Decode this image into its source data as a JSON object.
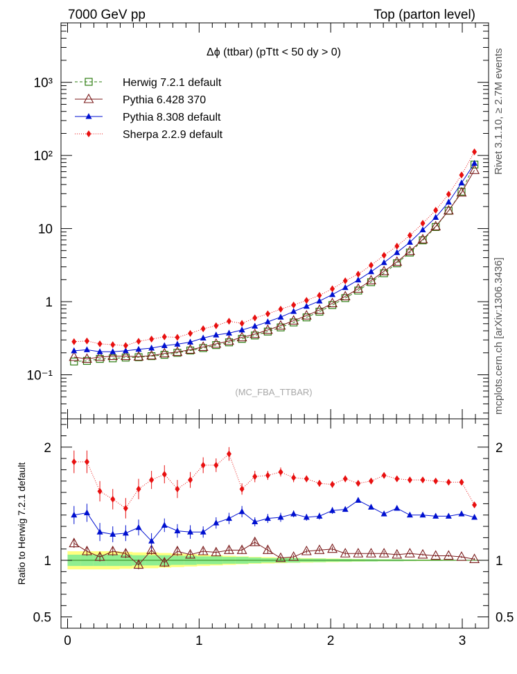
{
  "header": {
    "left": "7000 GeV pp",
    "right": "Top (parton level)"
  },
  "side_labels": {
    "rivet": "Rivet 3.1.10, ≥ 2.7M events",
    "mcplots": "mcplots.cern.ch [arXiv:1306.3436]"
  },
  "chart_data": [
    {
      "type": "line",
      "title": "Δϕ (ttbar) (pTtt < 50 dy > 0)",
      "watermark": "(MC_FBA_TTBAR)",
      "xlabel": "",
      "ylabel": "",
      "xlim": [
        -0.05,
        3.2
      ],
      "ylim": [
        0.025,
        6500
      ],
      "yscale": "log",
      "xticks": [
        "0",
        "1",
        "2",
        "3"
      ],
      "yticks": [
        "10⁻¹",
        "1",
        "10",
        "10²",
        "10³"
      ],
      "legend_position": "top-left",
      "x": [
        0.0491,
        0.1473,
        0.2454,
        0.3436,
        0.4418,
        0.54,
        0.6381,
        0.7363,
        0.8345,
        0.9327,
        1.0308,
        1.129,
        1.2272,
        1.3254,
        1.4235,
        1.5217,
        1.6199,
        1.7181,
        1.8162,
        1.9144,
        2.0126,
        2.1108,
        2.209,
        2.3071,
        2.4053,
        2.5035,
        2.6017,
        2.6998,
        2.798,
        2.8962,
        2.9944,
        3.0925
      ],
      "series": [
        {
          "name": "Herwig 7.2.1 default",
          "color": "#2e7d12",
          "marker": "open-square",
          "line": "dashed",
          "values": [
            0.152,
            0.155,
            0.165,
            0.168,
            0.172,
            0.174,
            0.18,
            0.188,
            0.2,
            0.215,
            0.232,
            0.255,
            0.278,
            0.31,
            0.345,
            0.39,
            0.445,
            0.52,
            0.61,
            0.73,
            0.9,
            1.12,
            1.42,
            1.85,
            2.45,
            3.35,
            4.7,
            6.9,
            10.5,
            17.5,
            32,
            75
          ]
        },
        {
          "name": "Pythia 6.428 370",
          "color": "#7a1a1a",
          "marker": "open-triangle",
          "line": "solid",
          "values": [
            0.175,
            0.165,
            0.175,
            0.18,
            0.18,
            0.177,
            0.183,
            0.196,
            0.205,
            0.22,
            0.24,
            0.265,
            0.29,
            0.325,
            0.36,
            0.41,
            0.47,
            0.55,
            0.645,
            0.77,
            0.95,
            1.18,
            1.5,
            1.95,
            2.6,
            3.5,
            4.9,
            7.1,
            10.7,
            17.6,
            31,
            63
          ]
        },
        {
          "name": "Pythia 8.308 default",
          "color": "#0010d0",
          "marker": "filled-triangle",
          "line": "solid",
          "values": [
            0.213,
            0.22,
            0.207,
            0.207,
            0.213,
            0.223,
            0.232,
            0.25,
            0.262,
            0.28,
            0.318,
            0.35,
            0.372,
            0.41,
            0.462,
            0.53,
            0.615,
            0.735,
            0.865,
            1.02,
            1.25,
            1.56,
            1.98,
            2.57,
            3.42,
            4.7,
            6.5,
            9.6,
            14.2,
            23,
            42,
            78
          ]
        },
        {
          "name": "Sherpa 2.2.9 default",
          "color": "#e81010",
          "marker": "filled-diamond",
          "line": "dotted",
          "values": [
            0.284,
            0.29,
            0.265,
            0.258,
            0.251,
            0.287,
            0.308,
            0.331,
            0.325,
            0.368,
            0.426,
            0.469,
            0.54,
            0.505,
            0.6,
            0.681,
            0.79,
            0.901,
            1.04,
            1.22,
            1.5,
            1.93,
            2.38,
            3.15,
            4.3,
            5.75,
            8.05,
            11.8,
            17.8,
            29.5,
            54,
            112
          ]
        }
      ]
    },
    {
      "type": "line",
      "title": "",
      "xlabel": "",
      "ylabel": "Ratio to Herwig 7.2.1 default",
      "xlim": [
        -0.05,
        3.2
      ],
      "ylim": [
        0.4,
        2.25
      ],
      "xticks": [
        "0",
        "1",
        "2",
        "3"
      ],
      "yticks": [
        "0.5",
        "1",
        "2"
      ],
      "reference_band": {
        "inner_color": "#90ee90",
        "outer_color": "#ffff80",
        "inner_halfwidth": [
          0.05,
          0.05,
          0.05,
          0.05,
          0.05,
          0.045,
          0.045,
          0.045,
          0.04,
          0.04,
          0.035,
          0.035,
          0.03,
          0.03,
          0.025,
          0.02,
          0.02,
          0.02,
          0.015,
          0.015,
          0.012,
          0.012,
          0.01,
          0.01,
          0.008,
          0.008,
          0.006,
          0.005,
          0.005,
          0.004,
          0.003,
          0.003
        ],
        "outer_halfwidth": [
          0.08,
          0.08,
          0.08,
          0.08,
          0.075,
          0.07,
          0.07,
          0.065,
          0.06,
          0.055,
          0.05,
          0.045,
          0.04,
          0.035,
          0.03,
          0.028,
          0.025,
          0.022,
          0.02,
          0.018,
          0.016,
          0.014,
          0.012,
          0.01,
          0.009,
          0.008,
          0.007,
          0.006,
          0.005,
          0.004,
          0.003,
          0.003
        ]
      },
      "series": [
        {
          "name": "Pythia 6.428 370",
          "values": [
            1.15,
            1.08,
            1.03,
            1.08,
            1.06,
            0.96,
            1.09,
            0.98,
            1.08,
            1.05,
            1.08,
            1.07,
            1.09,
            1.09,
            1.16,
            1.09,
            1.02,
            1.03,
            1.08,
            1.09,
            1.1,
            1.06,
            1.06,
            1.06,
            1.06,
            1.05,
            1.06,
            1.05,
            1.04,
            1.04,
            1.03,
            1.01
          ],
          "errors": [
            0.04,
            0.04,
            0.04,
            0.04,
            0.04,
            0.04,
            0.04,
            0.04,
            0.04,
            0.03,
            0.03,
            0.03,
            0.03,
            0.03,
            0.03,
            0.03,
            0.02,
            0.02,
            0.02,
            0.02,
            0.02,
            0.02,
            0.02,
            0.02,
            0.02,
            0.02,
            0.01,
            0.01,
            0.01,
            0.01,
            0.01,
            0.01
          ]
        },
        {
          "name": "Pythia 8.308 default",
          "values": [
            1.4,
            1.42,
            1.25,
            1.23,
            1.24,
            1.29,
            1.17,
            1.31,
            1.26,
            1.25,
            1.25,
            1.33,
            1.37,
            1.43,
            1.34,
            1.37,
            1.38,
            1.41,
            1.38,
            1.39,
            1.44,
            1.45,
            1.53,
            1.47,
            1.41,
            1.46,
            1.4,
            1.4,
            1.39,
            1.39,
            1.41,
            1.38
          ],
          "errors": [
            0.08,
            0.08,
            0.08,
            0.07,
            0.07,
            0.07,
            0.07,
            0.06,
            0.06,
            0.06,
            0.05,
            0.05,
            0.05,
            0.05,
            0.04,
            0.04,
            0.04,
            0.03,
            0.03,
            0.03,
            0.03,
            0.02,
            0.02,
            0.02,
            0.02,
            0.02,
            0.01,
            0.01,
            0.01,
            0.01,
            0.01,
            0.01
          ]
        },
        {
          "name": "Sherpa 2.2.9 default",
          "values": [
            1.87,
            1.87,
            1.61,
            1.54,
            1.46,
            1.63,
            1.71,
            1.76,
            1.63,
            1.71,
            1.84,
            1.84,
            1.94,
            1.63,
            1.74,
            1.75,
            1.78,
            1.73,
            1.72,
            1.68,
            1.67,
            1.72,
            1.68,
            1.7,
            1.75,
            1.72,
            1.71,
            1.71,
            1.7,
            1.69,
            1.69,
            1.49
          ],
          "errors": [
            0.1,
            0.1,
            0.09,
            0.09,
            0.09,
            0.09,
            0.08,
            0.08,
            0.08,
            0.07,
            0.07,
            0.06,
            0.06,
            0.05,
            0.05,
            0.04,
            0.04,
            0.04,
            0.03,
            0.03,
            0.03,
            0.03,
            0.02,
            0.02,
            0.02,
            0.02,
            0.02,
            0.01,
            0.01,
            0.01,
            0.01,
            0.01
          ]
        }
      ]
    }
  ]
}
